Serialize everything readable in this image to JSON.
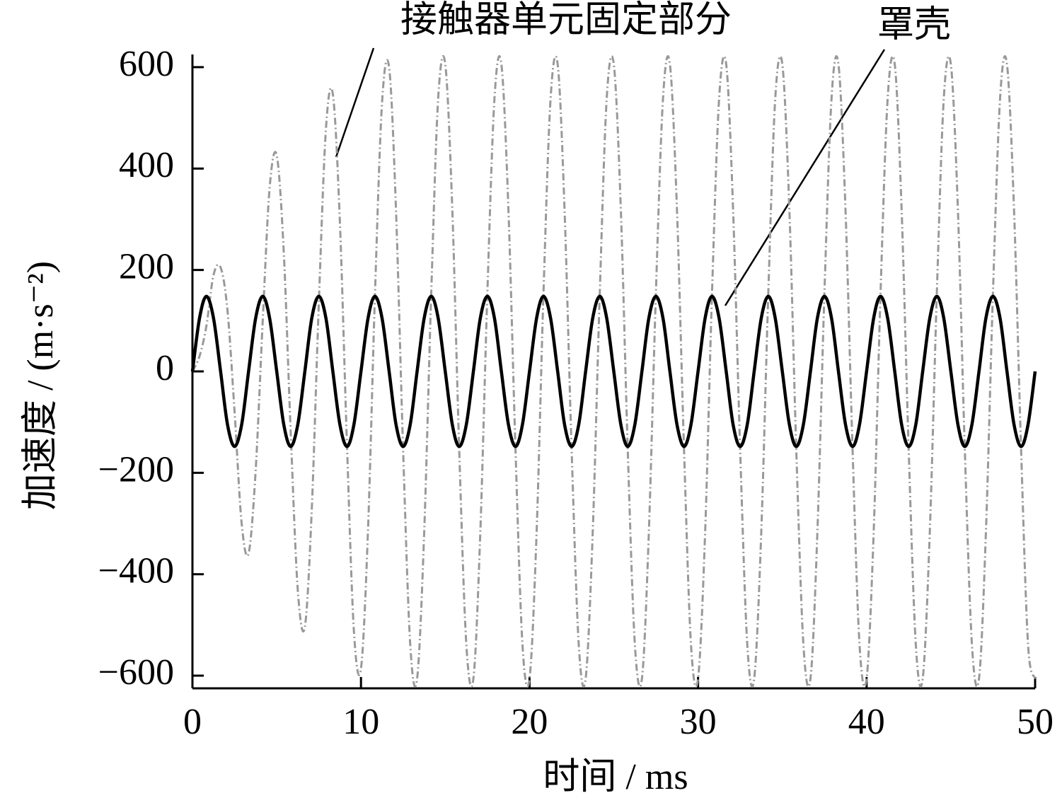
{
  "chart_data": {
    "type": "line",
    "xlabel": "时间 / ms",
    "ylabel": "加速度 / (m·s⁻²)",
    "annotations": [
      "接触器单元固定部分",
      "罩壳"
    ],
    "xlim": [
      0,
      50
    ],
    "xticks": [
      0,
      10,
      20,
      30,
      40,
      50
    ],
    "ylim": [
      -625,
      625
    ],
    "yticks": [
      {
        "value": -600,
        "label": "−600"
      },
      {
        "value": -400,
        "label": "−400"
      },
      {
        "value": -200,
        "label": "−200"
      },
      0,
      200,
      400,
      600
    ],
    "x": [
      0,
      0.42,
      0.83,
      1.25,
      1.67,
      2.08,
      2.5,
      2.92,
      3.33,
      3.75,
      4.17,
      4.58,
      5,
      5.42,
      5.83,
      6.25,
      6.67,
      7.08,
      7.5,
      7.92,
      8.33,
      8.75,
      9.17,
      9.58,
      10,
      10.42,
      10.83,
      11.25,
      11.67,
      12.08,
      12.5,
      12.92,
      13.33,
      13.75,
      14.17,
      14.58,
      15,
      15.42,
      15.83,
      16.25,
      16.67,
      17.08,
      17.5,
      17.92,
      18.33,
      18.75,
      19.17,
      19.58,
      20,
      20.42,
      20.83,
      21.25,
      21.67,
      22.08,
      22.5,
      22.92,
      23.33,
      23.75,
      24.17,
      24.58,
      25,
      25.42,
      25.83,
      26.25,
      26.67,
      27.08,
      27.5,
      27.92,
      28.33,
      28.75,
      29.17,
      29.58,
      30,
      30.42,
      30.83,
      31.25,
      31.67,
      32.08,
      32.5,
      32.92,
      33.33,
      33.75,
      34.17,
      34.58,
      35,
      35.42,
      35.83,
      36.25,
      36.67,
      37.08,
      37.5,
      37.92,
      38.33,
      38.75,
      39.17,
      39.58,
      40,
      40.42,
      40.83,
      41.25,
      41.67,
      42.08,
      42.5,
      42.92,
      43.33,
      43.75,
      44.17,
      44.58,
      45,
      45.42,
      45.83,
      46.25,
      46.67,
      47.08,
      47.5,
      47.92,
      48.33,
      48.75,
      49.17,
      49.58,
      50
    ],
    "series": [
      {
        "color": "#999999",
        "dashed": true,
        "values": [
          0,
          30,
          90,
          190,
          205,
          120,
          -80,
          -300,
          -359,
          -196,
          100,
          362,
          426,
          234,
          -120,
          -431,
          -504,
          -272,
          136,
          478,
          547,
          293,
          -146,
          -512,
          -586,
          -310,
          152,
          530,
          599,
          316,
          -155,
          -537,
          -606,
          -318,
          156,
          538,
          606,
          318,
          -156,
          -538,
          -606,
          -318,
          156,
          538,
          606,
          318,
          -156,
          -538,
          -606,
          -318,
          156,
          538,
          606,
          318,
          -156,
          -538,
          -606,
          -318,
          156,
          538,
          606,
          318,
          -156,
          -538,
          -606,
          -318,
          156,
          538,
          606,
          318,
          -156,
          -538,
          -606,
          -318,
          156,
          538,
          606,
          318,
          -156,
          -538,
          -606,
          -318,
          156,
          538,
          606,
          318,
          -156,
          -538,
          -606,
          -318,
          156,
          538,
          606,
          318,
          -156,
          -538,
          -606,
          -318,
          156,
          538,
          606,
          318,
          -156,
          -538,
          -606,
          -318,
          156,
          538,
          606,
          318,
          -156,
          -538,
          -606,
          -318,
          156,
          538,
          606,
          318,
          -156,
          -538,
          -606
        ]
      },
      {
        "color": "#000000",
        "dashed": false,
        "values": [
          0,
          105,
          148,
          105,
          0,
          -105,
          -148,
          -105,
          0,
          105,
          148,
          105,
          0,
          -105,
          -148,
          -105,
          0,
          105,
          148,
          105,
          0,
          -105,
          -148,
          -105,
          0,
          105,
          148,
          105,
          0,
          -105,
          -148,
          -105,
          0,
          105,
          148,
          105,
          0,
          -105,
          -148,
          -105,
          0,
          105,
          148,
          105,
          0,
          -105,
          -148,
          -105,
          0,
          105,
          148,
          105,
          0,
          -105,
          -148,
          -105,
          0,
          105,
          148,
          105,
          0,
          -105,
          -148,
          -105,
          0,
          105,
          148,
          105,
          0,
          -105,
          -148,
          -105,
          0,
          105,
          148,
          105,
          0,
          -105,
          -148,
          -105,
          0,
          105,
          148,
          105,
          0,
          -105,
          -148,
          -105,
          0,
          105,
          148,
          105,
          0,
          -105,
          -148,
          -105,
          0,
          105,
          148,
          105,
          0,
          -105,
          -148,
          -105,
          0,
          105,
          148,
          105,
          0,
          -105,
          -148,
          -105,
          0,
          105,
          148,
          105,
          0,
          -105,
          -148,
          -105,
          0
        ]
      }
    ]
  }
}
